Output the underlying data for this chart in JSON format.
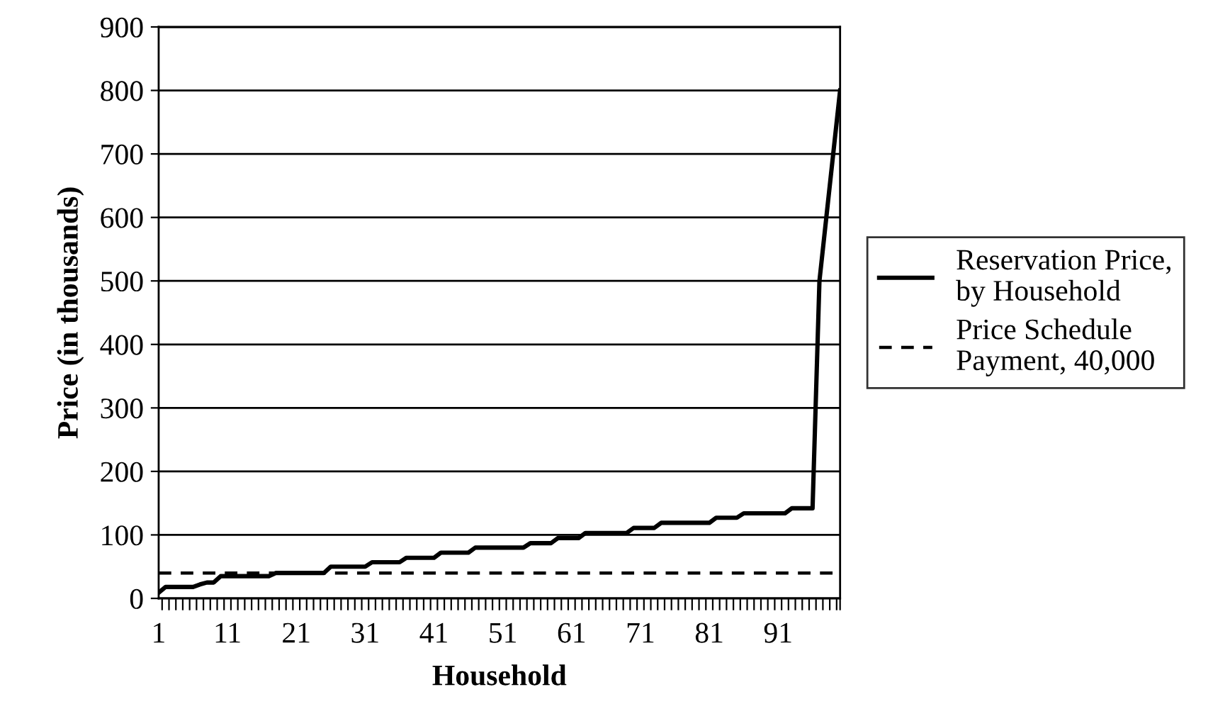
{
  "chart_data": {
    "type": "line",
    "xlabel": "Household",
    "ylabel": "Price (in thousands)",
    "categories": [
      "1",
      null,
      null,
      null,
      null,
      null,
      null,
      null,
      null,
      null,
      "11",
      null,
      null,
      null,
      null,
      null,
      null,
      null,
      null,
      null,
      "21",
      null,
      null,
      null,
      null,
      null,
      null,
      null,
      null,
      null,
      "31",
      null,
      null,
      null,
      null,
      null,
      null,
      null,
      null,
      null,
      "41",
      null,
      null,
      null,
      null,
      null,
      null,
      null,
      null,
      null,
      "51",
      null,
      null,
      null,
      null,
      null,
      null,
      null,
      null,
      null,
      "61",
      null,
      null,
      null,
      null,
      null,
      null,
      null,
      null,
      null,
      "71",
      null,
      null,
      null,
      null,
      null,
      null,
      null,
      null,
      null,
      "81",
      null,
      null,
      null,
      null,
      null,
      null,
      null,
      null,
      null,
      "91",
      null,
      null,
      null,
      null,
      null,
      null,
      null,
      null,
      null
    ],
    "series": [
      {
        "name": "Reservation Price,\nby Household",
        "color": "#000000",
        "line_style": "solid",
        "values": [
          9,
          18,
          18,
          18,
          18,
          18,
          22,
          25,
          25,
          35,
          35,
          35,
          35,
          35,
          35,
          35,
          35,
          40,
          40,
          40,
          40,
          40,
          40,
          40,
          40,
          50,
          50,
          50,
          50,
          50,
          50,
          57,
          57,
          57,
          57,
          57,
          64,
          64,
          64,
          64,
          64,
          72,
          72,
          72,
          72,
          72,
          80,
          80,
          80,
          80,
          80,
          80,
          80,
          80,
          87,
          87,
          87,
          87,
          95,
          95,
          95,
          95,
          103,
          103,
          103,
          103,
          103,
          103,
          103,
          111,
          111,
          111,
          111,
          119,
          119,
          119,
          119,
          119,
          119,
          119,
          119,
          127,
          127,
          127,
          127,
          134,
          134,
          134,
          134,
          134,
          134,
          134,
          142,
          142,
          142,
          142,
          500,
          600,
          700,
          800
        ]
      },
      {
        "name": "Price Schedule\nPayment, 40,000",
        "color": "#000000",
        "line_style": "dashed",
        "values": [
          40,
          40,
          40,
          40,
          40,
          40,
          40,
          40,
          40,
          40,
          40,
          40,
          40,
          40,
          40,
          40,
          40,
          40,
          40,
          40,
          40,
          40,
          40,
          40,
          40,
          40,
          40,
          40,
          40,
          40,
          40,
          40,
          40,
          40,
          40,
          40,
          40,
          40,
          40,
          40,
          40,
          40,
          40,
          40,
          40,
          40,
          40,
          40,
          40,
          40,
          40,
          40,
          40,
          40,
          40,
          40,
          40,
          40,
          40,
          40,
          40,
          40,
          40,
          40,
          40,
          40,
          40,
          40,
          40,
          40,
          40,
          40,
          40,
          40,
          40,
          40,
          40,
          40,
          40,
          40,
          40,
          40,
          40,
          40,
          40,
          40,
          40,
          40,
          40,
          40,
          40,
          40,
          40,
          40,
          40,
          40,
          40,
          40,
          40,
          40
        ]
      }
    ],
    "ylim": [
      0,
      900
    ],
    "yticks": [
      0,
      100,
      200,
      300,
      400,
      500,
      600,
      700,
      800,
      900
    ],
    "grid": "y",
    "legend": "right",
    "marker": "none"
  }
}
